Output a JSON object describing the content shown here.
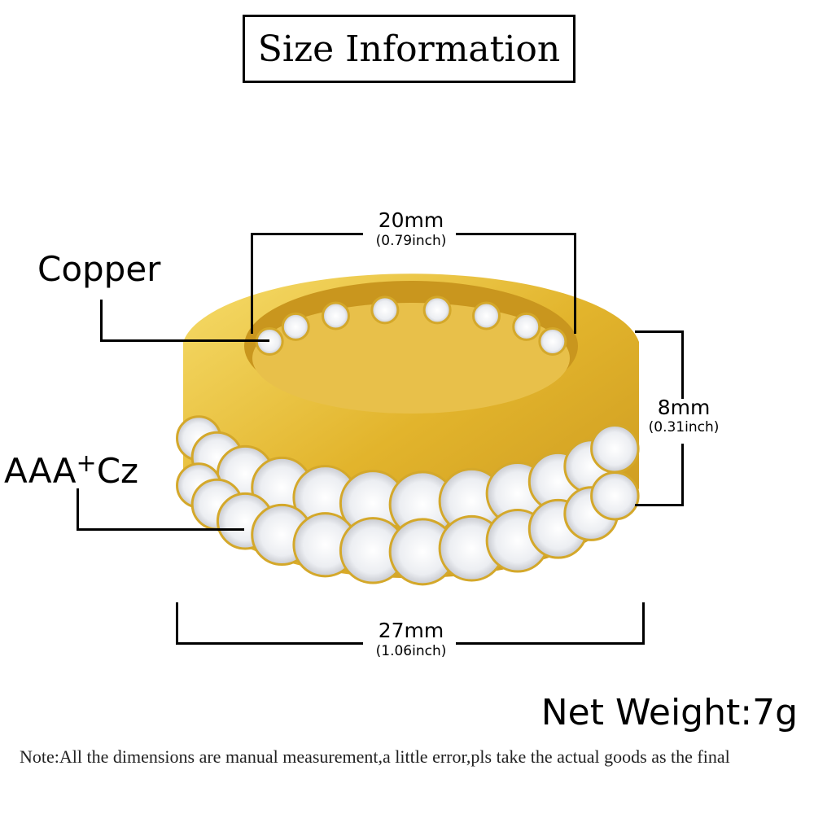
{
  "title": "Size Information",
  "labels": {
    "material": "Copper",
    "stone_main": "AAA",
    "stone_sup": "+",
    "stone_suffix": "Cz"
  },
  "dimensions": {
    "inner_diameter": {
      "main": "20mm",
      "sub": "(0.79inch)"
    },
    "width": {
      "main": "8mm",
      "sub": "(0.31inch)"
    },
    "outer_diameter": {
      "main": "27mm",
      "sub": "(1.06inch)"
    }
  },
  "net_weight": "Net Weight:7g",
  "note": "Note:All the dimensions are manual measurement,a little error,pls take the actual goods as the final",
  "colors": {
    "gold": "#e8c23a",
    "gold_dark": "#b8891a",
    "stone": "#f4f4f6"
  }
}
